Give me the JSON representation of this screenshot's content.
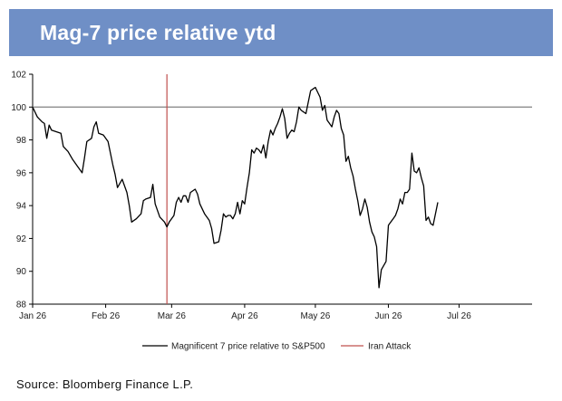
{
  "title": "Mag-7 price relative ytd",
  "source": "Source: Bloomberg Finance L.P.",
  "colors": {
    "header_bg": "#6f8fc6",
    "series": "#000000",
    "event": "#c0504d",
    "baseline": "#808080"
  },
  "chart_data": {
    "type": "line",
    "title": "Mag-7 price relative ytd",
    "xlabel": "",
    "ylabel": "",
    "ylim": [
      88,
      102
    ],
    "yticks": [
      88,
      90,
      92,
      94,
      96,
      98,
      100,
      102
    ],
    "xticks": [
      {
        "label": "Jan 26",
        "day": 0
      },
      {
        "label": "Feb 26",
        "day": 31
      },
      {
        "label": "Mar 26",
        "day": 59
      },
      {
        "label": "Apr 26",
        "day": 90
      },
      {
        "label": "May 26",
        "day": 120
      },
      {
        "label": "Jun 26",
        "day": 151
      },
      {
        "label": "Jul 26",
        "day": 181
      }
    ],
    "xlim_days": [
      0,
      212
    ],
    "grid": false,
    "legend_position": "bottom",
    "reference_line": {
      "value": 100
    },
    "series": [
      {
        "name": "Magnificent 7 price relative to S&P500",
        "points": [
          [
            0,
            100.0
          ],
          [
            2,
            99.4
          ],
          [
            4,
            99.1
          ],
          [
            5,
            99.0
          ],
          [
            6,
            98.1
          ],
          [
            7,
            98.9
          ],
          [
            8,
            98.6
          ],
          [
            10,
            98.5
          ],
          [
            12,
            98.4
          ],
          [
            13,
            97.6
          ],
          [
            15,
            97.3
          ],
          [
            17,
            96.8
          ],
          [
            19,
            96.4
          ],
          [
            21,
            96.0
          ],
          [
            22,
            96.9
          ],
          [
            23,
            97.9
          ],
          [
            25,
            98.1
          ],
          [
            26,
            98.8
          ],
          [
            27,
            99.1
          ],
          [
            28,
            98.4
          ],
          [
            30,
            98.3
          ],
          [
            32,
            97.9
          ],
          [
            34,
            96.5
          ],
          [
            35,
            95.9
          ],
          [
            36,
            95.1
          ],
          [
            38,
            95.6
          ],
          [
            40,
            94.8
          ],
          [
            41,
            94.0
          ],
          [
            42,
            93.0
          ],
          [
            44,
            93.2
          ],
          [
            46,
            93.5
          ],
          [
            47,
            94.3
          ],
          [
            48,
            94.4
          ],
          [
            50,
            94.5
          ],
          [
            51,
            95.3
          ],
          [
            52,
            94.1
          ],
          [
            54,
            93.3
          ],
          [
            56,
            93.0
          ],
          [
            57,
            92.7
          ],
          [
            58,
            93.0
          ],
          [
            60,
            93.4
          ],
          [
            61,
            94.2
          ],
          [
            62,
            94.5
          ],
          [
            63,
            94.2
          ],
          [
            64,
            94.6
          ],
          [
            65,
            94.6
          ],
          [
            66,
            94.2
          ],
          [
            67,
            94.8
          ],
          [
            69,
            95.0
          ],
          [
            70,
            94.7
          ],
          [
            71,
            94.1
          ],
          [
            73,
            93.5
          ],
          [
            75,
            93.1
          ],
          [
            76,
            92.6
          ],
          [
            77,
            91.7
          ],
          [
            79,
            91.8
          ],
          [
            80,
            92.5
          ],
          [
            81,
            93.5
          ],
          [
            82,
            93.3
          ],
          [
            83,
            93.4
          ],
          [
            84,
            93.4
          ],
          [
            85,
            93.2
          ],
          [
            86,
            93.5
          ],
          [
            87,
            94.2
          ],
          [
            88,
            93.5
          ],
          [
            89,
            94.3
          ],
          [
            90,
            94.1
          ],
          [
            91,
            95.1
          ],
          [
            92,
            96.0
          ],
          [
            93,
            97.4
          ],
          [
            94,
            97.2
          ],
          [
            95,
            97.5
          ],
          [
            96,
            97.4
          ],
          [
            97,
            97.2
          ],
          [
            98,
            97.7
          ],
          [
            99,
            96.9
          ],
          [
            100,
            97.9
          ],
          [
            101,
            98.6
          ],
          [
            102,
            98.3
          ],
          [
            103,
            98.7
          ],
          [
            104,
            99.0
          ],
          [
            105,
            99.4
          ],
          [
            106,
            99.9
          ],
          [
            107,
            99.3
          ],
          [
            108,
            98.1
          ],
          [
            109,
            98.4
          ],
          [
            110,
            98.6
          ],
          [
            111,
            98.5
          ],
          [
            112,
            99.1
          ],
          [
            113,
            100.0
          ],
          [
            114,
            99.8
          ],
          [
            115,
            99.7
          ],
          [
            116,
            99.6
          ],
          [
            117,
            100.3
          ],
          [
            118,
            101.0
          ],
          [
            119,
            101.1
          ],
          [
            120,
            101.2
          ],
          [
            121,
            100.9
          ],
          [
            122,
            100.6
          ],
          [
            123,
            99.8
          ],
          [
            124,
            100.1
          ],
          [
            125,
            99.2
          ],
          [
            126,
            99.0
          ],
          [
            127,
            98.8
          ],
          [
            128,
            99.4
          ],
          [
            129,
            99.8
          ],
          [
            130,
            99.6
          ],
          [
            131,
            98.7
          ],
          [
            132,
            98.3
          ],
          [
            133,
            96.7
          ],
          [
            134,
            97.0
          ],
          [
            135,
            96.3
          ],
          [
            136,
            95.8
          ],
          [
            137,
            95.0
          ],
          [
            138,
            94.3
          ],
          [
            139,
            93.4
          ],
          [
            140,
            93.8
          ],
          [
            141,
            94.4
          ],
          [
            142,
            93.9
          ],
          [
            143,
            93.0
          ],
          [
            144,
            92.4
          ],
          [
            145,
            92.1
          ],
          [
            146,
            91.5
          ],
          [
            147,
            89.0
          ],
          [
            148,
            90.1
          ],
          [
            150,
            90.6
          ],
          [
            151,
            92.8
          ],
          [
            152,
            93.0
          ],
          [
            153,
            93.2
          ],
          [
            154,
            93.4
          ],
          [
            155,
            93.8
          ],
          [
            156,
            94.4
          ],
          [
            157,
            94.1
          ],
          [
            158,
            94.8
          ],
          [
            159,
            94.8
          ],
          [
            160,
            95.0
          ],
          [
            161,
            97.2
          ],
          [
            162,
            96.1
          ],
          [
            163,
            96.0
          ],
          [
            164,
            96.3
          ],
          [
            165,
            95.7
          ],
          [
            166,
            95.2
          ],
          [
            167,
            93.1
          ],
          [
            168,
            93.3
          ],
          [
            169,
            92.9
          ],
          [
            170,
            92.8
          ],
          [
            171,
            93.5
          ],
          [
            172,
            94.2
          ]
        ]
      },
      {
        "name": "Iran Attack",
        "event_day": 57
      }
    ]
  }
}
